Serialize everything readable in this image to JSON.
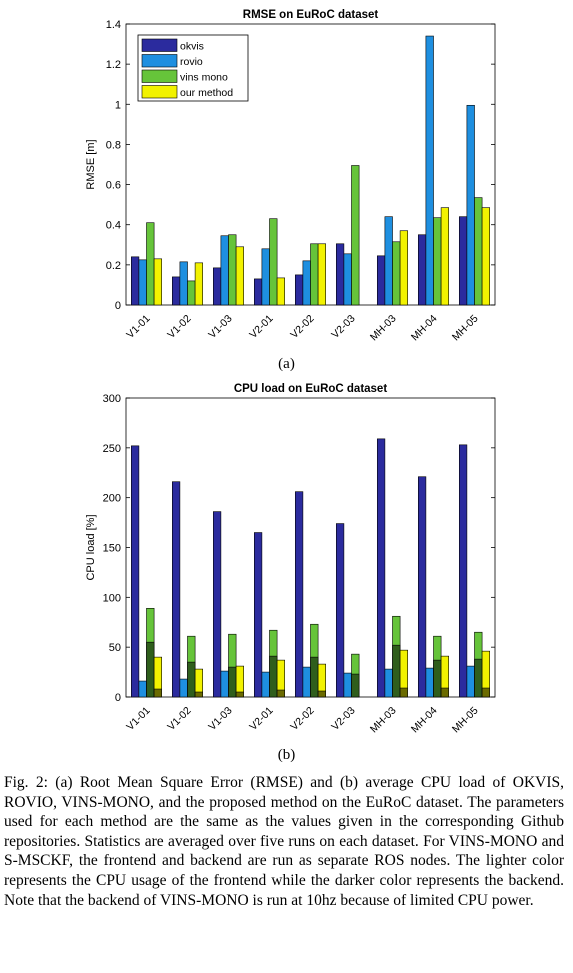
{
  "chart_data": [
    {
      "type": "bar",
      "title": "RMSE on EuRoC dataset",
      "xlabel": "",
      "ylabel": "RMSE [m]",
      "ylim": [
        0,
        1.4
      ],
      "yticks": [
        "0",
        "0.2",
        "0.4",
        "0.6",
        "0.8",
        "1",
        "1.2",
        "1.4"
      ],
      "categories": [
        "V1-01",
        "V1-02",
        "V1-03",
        "V2-01",
        "V2-02",
        "V2-03",
        "MH-03",
        "MH-04",
        "MH-05"
      ],
      "legend_position": "top-left",
      "series": [
        {
          "name": "okvis",
          "color": "#2b2b9e",
          "values": [
            0.24,
            0.14,
            0.185,
            0.13,
            0.15,
            0.305,
            0.245,
            0.35,
            0.44
          ]
        },
        {
          "name": "rovio",
          "color": "#1e8fe0",
          "values": [
            0.225,
            0.215,
            0.345,
            0.28,
            0.22,
            0.255,
            0.44,
            1.34,
            0.995
          ]
        },
        {
          "name": "vins mono",
          "color": "#66c43a",
          "values": [
            0.41,
            0.12,
            0.35,
            0.43,
            0.305,
            0.695,
            0.315,
            0.435,
            0.535
          ]
        },
        {
          "name": "our method",
          "color": "#f2f200",
          "values": [
            0.23,
            0.21,
            0.29,
            0.135,
            0.305,
            null,
            0.37,
            0.485,
            0.485
          ]
        }
      ]
    },
    {
      "type": "bar",
      "title": "CPU load on EuRoC dataset",
      "xlabel": "",
      "ylabel": "CPU load [%]",
      "ylim": [
        0,
        300
      ],
      "yticks": [
        "0",
        "50",
        "100",
        "150",
        "200",
        "250",
        "300"
      ],
      "categories": [
        "V1-01",
        "V1-02",
        "V1-03",
        "V2-01",
        "V2-02",
        "V2-03",
        "MH-03",
        "MH-04",
        "MH-05"
      ],
      "stacked_note": "lighter = frontend, darker = backend",
      "series": [
        {
          "name": "okvis",
          "color": "#2b2b9e",
          "dark": "#2b2b9e",
          "total": [
            252,
            216,
            186,
            165,
            206,
            174,
            259,
            221,
            253
          ],
          "backend": [
            null,
            null,
            null,
            null,
            null,
            null,
            null,
            null,
            null
          ]
        },
        {
          "name": "rovio",
          "color": "#1e8fe0",
          "dark": "#1e8fe0",
          "total": [
            16,
            18,
            26,
            25,
            30,
            24,
            28,
            29,
            31
          ],
          "backend": [
            null,
            null,
            null,
            null,
            null,
            null,
            null,
            null,
            null
          ]
        },
        {
          "name": "vins mono",
          "color": "#66c43a",
          "dark": "#2f5e1c",
          "total": [
            89,
            61,
            63,
            67,
            73,
            43,
            81,
            61,
            65
          ],
          "backend": [
            55,
            35,
            30,
            41,
            40,
            23,
            52,
            37,
            38
          ]
        },
        {
          "name": "our method",
          "color": "#f2f200",
          "dark": "#6b6b00",
          "total": [
            40,
            28,
            31,
            37,
            33,
            null,
            47,
            41,
            46
          ],
          "backend": [
            8,
            5,
            5,
            7,
            6,
            null,
            9,
            9,
            9
          ]
        }
      ]
    }
  ],
  "subfig_labels": [
    "(a)",
    "(b)"
  ],
  "caption": "Fig. 2: (a) Root Mean Square Error (RMSE) and (b) average CPU load of OKVIS, ROVIO, VINS-MONO, and the proposed method on the EuRoC dataset. The parameters used for each method are the same as the values given in the corresponding Github repositories. Statistics are averaged over five runs on each dataset. For VINS-MONO and S-MSCKF, the frontend and backend are run as separate ROS nodes. The lighter color represents the CPU usage of the frontend while the darker color represents the backend. Note that the backend of VINS-MONO is run at 10hz because of limited CPU power."
}
